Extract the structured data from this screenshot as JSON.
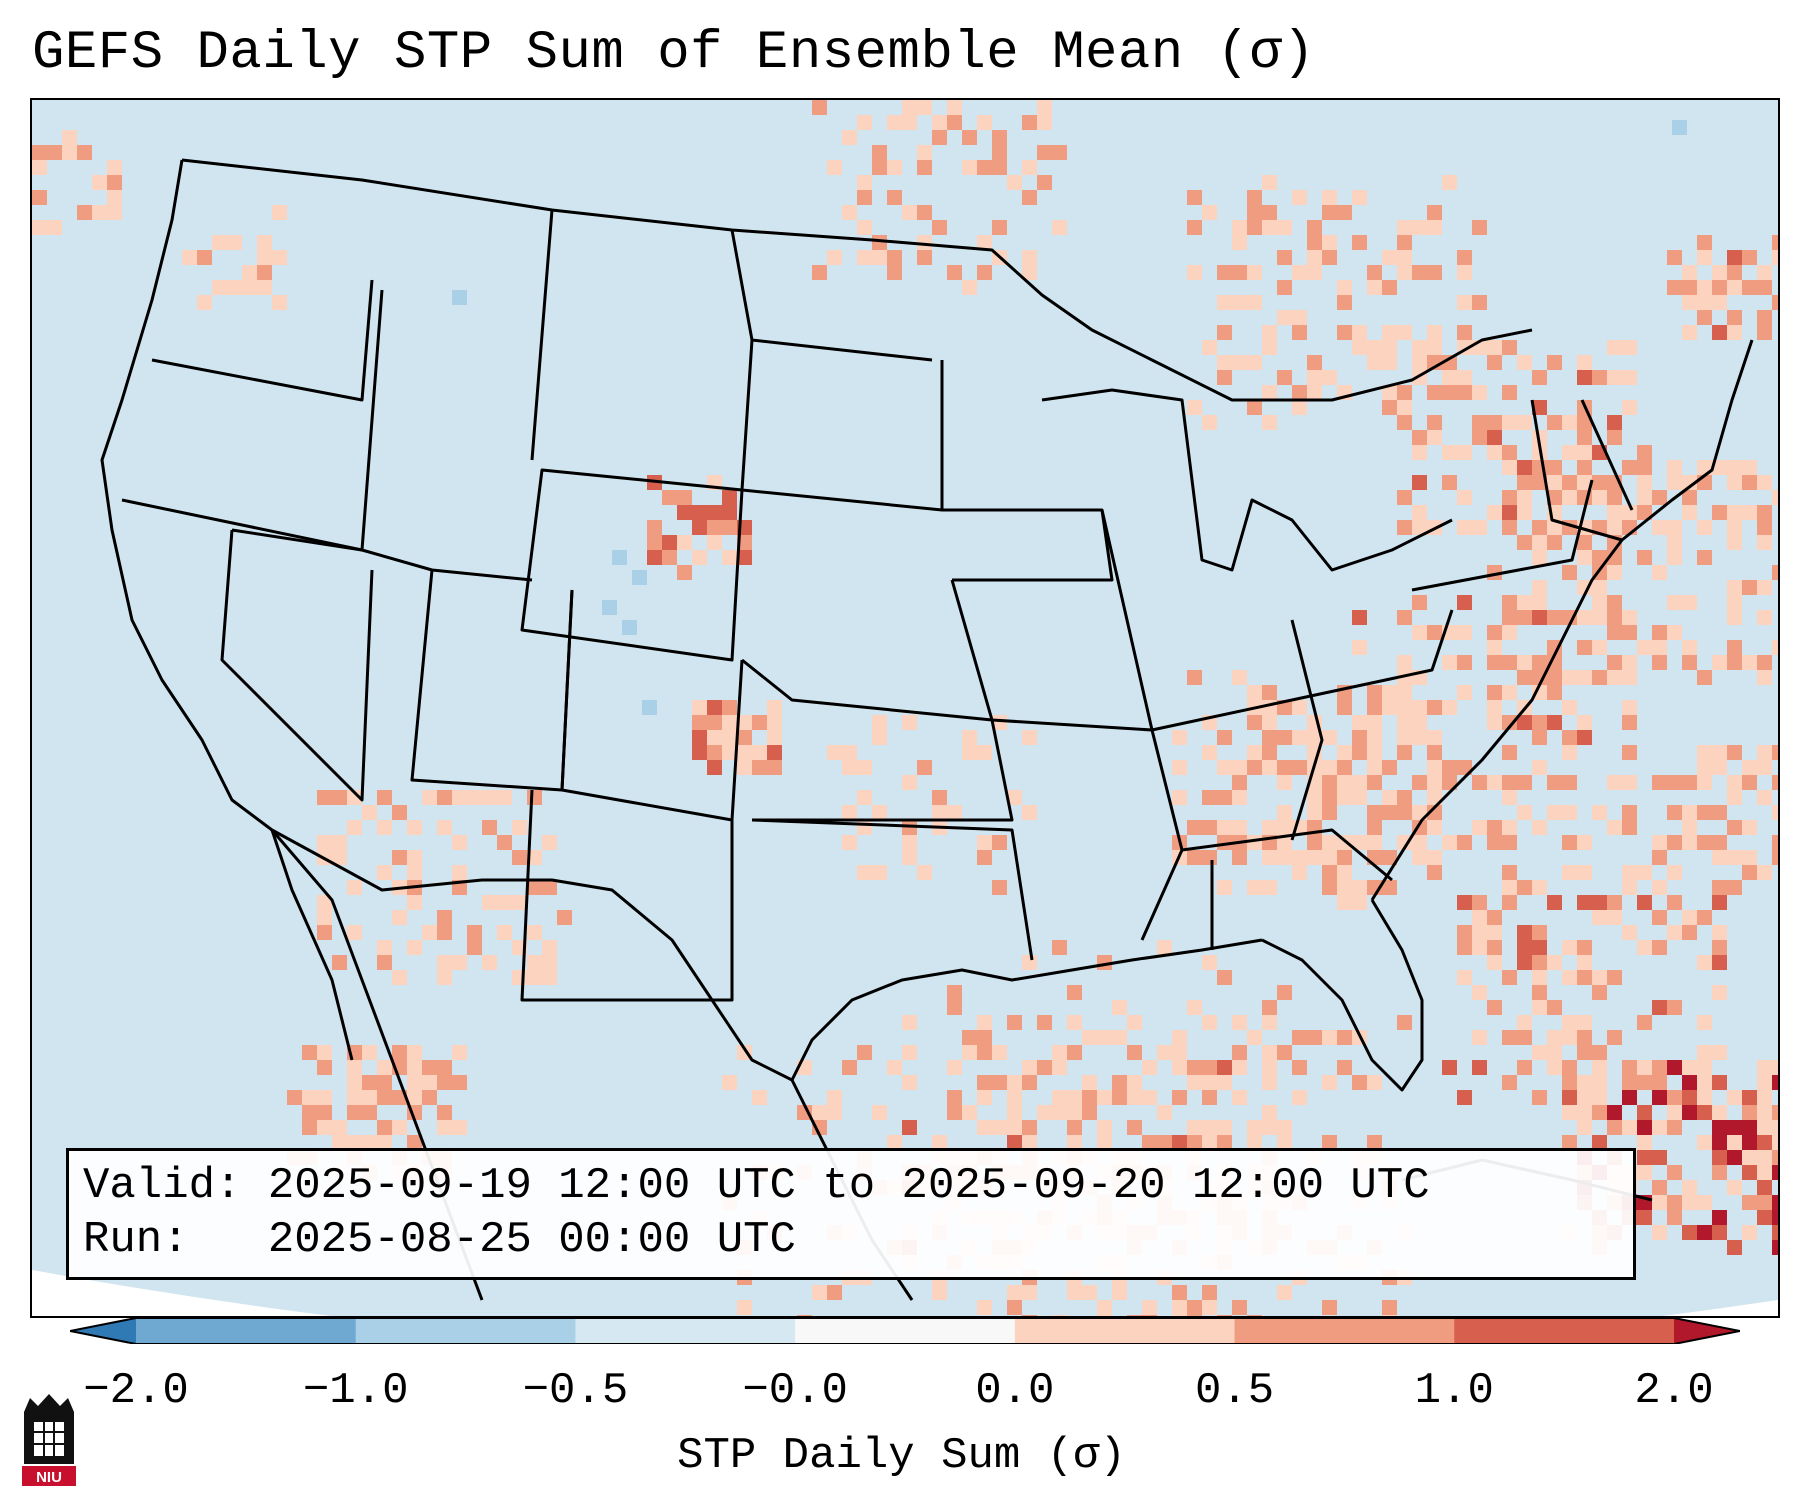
{
  "title": "GEFS Daily STP Sum of Ensemble Mean (σ)",
  "valid_box": {
    "line1": "Valid: 2025-09-19 12:00 UTC to 2025-09-20 12:00 UTC",
    "line2": "Run:   2025-08-25 00:00 UTC"
  },
  "colorbar": {
    "label": "STP Daily Sum (σ)",
    "ticks": [
      "−2.0",
      "−1.0",
      "−0.5",
      "−0.0",
      "0.0",
      "0.5",
      "1.0",
      "2.0"
    ],
    "colors": [
      "#2f79b5",
      "#6fa9d2",
      "#a9d0e6",
      "#d6e8f2",
      "#f8f8f8",
      "#fbd3bf",
      "#ef9c80",
      "#d6604d",
      "#b2182b"
    ]
  },
  "map": {
    "background_color": "#d1e5f0",
    "border_color": "#000000",
    "ocean_outside_color": "#ffffff"
  },
  "logo": {
    "text": "NIU"
  }
}
